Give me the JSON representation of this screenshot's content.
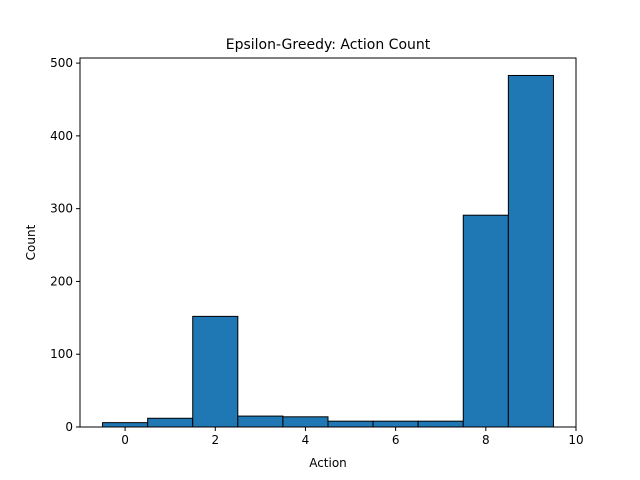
{
  "chart_data": {
    "type": "bar",
    "title": "Epsilon-Greedy: Action Count",
    "xlabel": "Action",
    "ylabel": "Count",
    "categories": [
      0,
      1,
      2,
      3,
      4,
      5,
      6,
      7,
      8,
      9
    ],
    "values": [
      6,
      12,
      152,
      15,
      14,
      8,
      8,
      8,
      291,
      483
    ],
    "xlim": [
      -1.0,
      10
    ],
    "ylim": [
      0,
      507
    ],
    "xticks": [
      0,
      2,
      4,
      6,
      8,
      10
    ],
    "yticks": [
      0,
      100,
      200,
      300,
      400,
      500
    ],
    "grid": false,
    "bar_color": "#1f77b4",
    "edge_color": "#000000"
  }
}
